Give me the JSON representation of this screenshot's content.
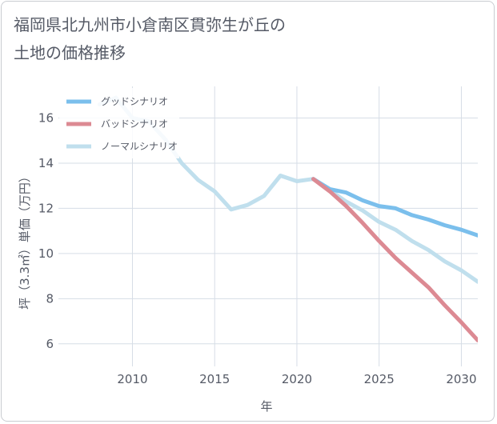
{
  "title": {
    "line1": "福岡県北九州市小倉南区貫弥生が丘の",
    "line2": "土地の価格推移"
  },
  "chart_data": {
    "type": "line",
    "xlabel": "年",
    "ylabel": "坪（3.3㎡）単価（万円）",
    "xlim": [
      2005.5,
      2031
    ],
    "ylim": [
      5.0,
      17.4
    ],
    "xticks": [
      2010,
      2015,
      2020,
      2025,
      2030
    ],
    "yticks": [
      6,
      8,
      10,
      12,
      14,
      16
    ],
    "grid": true,
    "legend_position": "top-left",
    "series": [
      {
        "name": "グッドシナリオ",
        "color": "#7bbfec",
        "x": [
          2021,
          2022,
          2023,
          2024,
          2025,
          2026,
          2027,
          2028,
          2029,
          2030,
          2031
        ],
        "values": [
          13.3,
          12.85,
          12.7,
          12.35,
          12.1,
          12.0,
          11.7,
          11.5,
          11.25,
          11.05,
          10.8
        ]
      },
      {
        "name": "バッドシナリオ",
        "color": "#dc8a93",
        "x": [
          2021,
          2022,
          2023,
          2024,
          2025,
          2026,
          2027,
          2028,
          2029,
          2030,
          2031
        ],
        "values": [
          13.3,
          12.75,
          12.1,
          11.35,
          10.55,
          9.8,
          9.15,
          8.5,
          7.7,
          6.95,
          6.15
        ]
      },
      {
        "name": "ノーマルシナリオ",
        "color": "#c0dfed",
        "x": [
          2008,
          2009,
          2010,
          2011,
          2012,
          2013,
          2014,
          2015,
          2016,
          2017,
          2018,
          2019,
          2020,
          2021,
          2022,
          2023,
          2024,
          2025,
          2026,
          2027,
          2028,
          2029,
          2030,
          2031
        ],
        "values": [
          16.6,
          16.9,
          16.0,
          15.85,
          15.05,
          14.0,
          13.25,
          12.75,
          11.95,
          12.15,
          12.55,
          13.45,
          13.2,
          13.3,
          12.8,
          12.3,
          11.9,
          11.4,
          11.05,
          10.55,
          10.15,
          9.65,
          9.25,
          8.75
        ]
      }
    ]
  }
}
